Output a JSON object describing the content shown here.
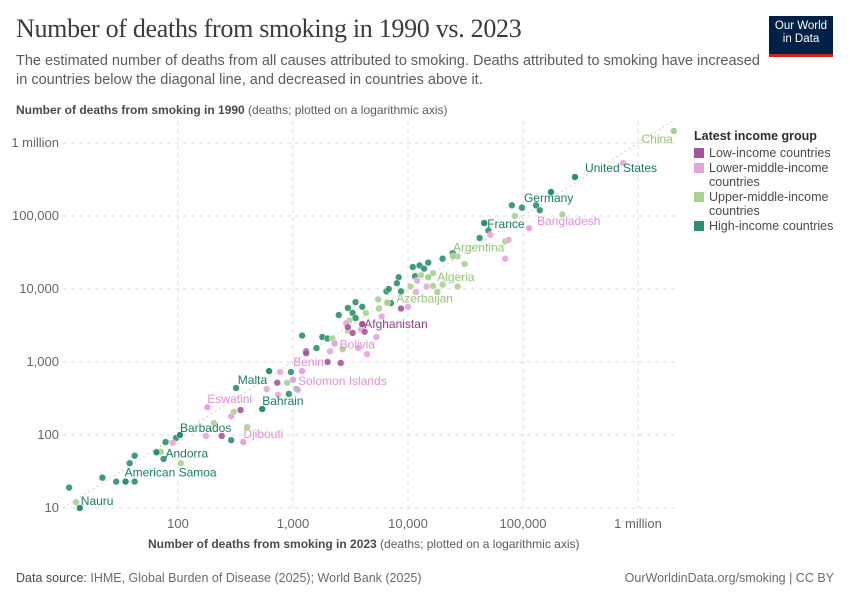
{
  "header": {
    "title": "Number of deaths from smoking in 1990 vs. 2023",
    "subtitle": "The estimated number of deaths from all causes attributed to smoking. Deaths attributed to smoking have increased in countries below the diagonal line, and decreased in countries above it.",
    "logo_line1": "Our World",
    "logo_line2": "in Data"
  },
  "footer": {
    "source_label": "Data source:",
    "source_text": " IHME, Global Burden of Disease (2025); World Bank (2025)",
    "right": "OurWorldinData.org/smoking | CC BY"
  },
  "colors": {
    "low": "#a2559c",
    "lower_middle": "#e3a5de",
    "upper_middle": "#a8d08f",
    "high": "#2d9068",
    "label_low": "#8f3d8c",
    "label_lower_middle": "#de92d6",
    "label_upper_middle": "#95c577",
    "label_high": "#17805a"
  },
  "chart_data": {
    "type": "scatter",
    "xlabel_bold": "Number of deaths from smoking in 2023",
    "xlabel_rest": " (deaths; plotted on a logarithmic axis)",
    "ylabel_bold": "Number of deaths from smoking in 1990",
    "ylabel_rest": " (deaths; plotted on a logarithmic axis)",
    "x_scale": "log",
    "y_scale": "log",
    "xlim": [
      10,
      2200000
    ],
    "ylim": [
      10,
      2000000
    ],
    "x_ticks": [
      {
        "v": 100,
        "label": "100"
      },
      {
        "v": 1000,
        "label": "1,000"
      },
      {
        "v": 10000,
        "label": "10,000"
      },
      {
        "v": 100000,
        "label": "100,000"
      },
      {
        "v": 1000000,
        "label": "1 million"
      }
    ],
    "y_ticks": [
      {
        "v": 10,
        "label": "10"
      },
      {
        "v": 100,
        "label": "100"
      },
      {
        "v": 1000,
        "label": "1,000"
      },
      {
        "v": 10000,
        "label": "10,000"
      },
      {
        "v": 100000,
        "label": "100,000"
      },
      {
        "v": 1000000,
        "label": "1 million"
      }
    ],
    "grid": true,
    "reference_line": "y = x",
    "legend": {
      "title": "Latest income group",
      "placement": "right",
      "entries": [
        {
          "key": "low",
          "label": "Low-income countries"
        },
        {
          "key": "lower_middle",
          "label": "Lower-middle-income countries"
        },
        {
          "key": "upper_middle",
          "label": "Upper-middle-income countries"
        },
        {
          "key": "high",
          "label": "High-income countries"
        }
      ]
    },
    "labeled_points": [
      {
        "name": "China",
        "x": 2050000,
        "y": 1460000,
        "group": "upper_middle"
      },
      {
        "name": "United States",
        "x": 283000,
        "y": 342000,
        "group": "high"
      },
      {
        "name": "Germany",
        "x": 175000,
        "y": 213000,
        "group": "high"
      },
      {
        "name": "France",
        "x": 46000,
        "y": 80000,
        "group": "high"
      },
      {
        "name": "Bangladesh",
        "x": 113000,
        "y": 68000,
        "group": "lower_middle"
      },
      {
        "name": "Argentina",
        "x": 24600,
        "y": 28000,
        "group": "upper_middle"
      },
      {
        "name": "Algeria",
        "x": 15000,
        "y": 14500,
        "group": "upper_middle"
      },
      {
        "name": "Azerbaijan",
        "x": 6600,
        "y": 6500,
        "group": "upper_middle"
      },
      {
        "name": "Afghanistan",
        "x": 4000,
        "y": 3300,
        "group": "low"
      },
      {
        "name": "Bolivia",
        "x": 2300,
        "y": 1800,
        "group": "lower_middle"
      },
      {
        "name": "Benin",
        "x": 1200,
        "y": 750,
        "group": "lower_middle"
      },
      {
        "name": "Solomon Islands",
        "x": 1000,
        "y": 570,
        "group": "lower_middle"
      },
      {
        "name": "Malta",
        "x": 620,
        "y": 750,
        "group": "high"
      },
      {
        "name": "Bahrain",
        "x": 540,
        "y": 227,
        "group": "high"
      },
      {
        "name": "Eswatini",
        "x": 180,
        "y": 240,
        "group": "lower_middle"
      },
      {
        "name": "Barbados",
        "x": 104,
        "y": 100,
        "group": "high"
      },
      {
        "name": "Djibouti",
        "x": 370,
        "y": 80,
        "group": "lower_middle"
      },
      {
        "name": "Andorra",
        "x": 65,
        "y": 58,
        "group": "high"
      },
      {
        "name": "American Samoa",
        "x": 35,
        "y": 23,
        "group": "high"
      },
      {
        "name": "Nauru",
        "x": 14,
        "y": 10,
        "group": "high"
      }
    ],
    "points": [
      {
        "x": 740000,
        "y": 530000,
        "group": "lower_middle"
      },
      {
        "x": 24500,
        "y": 31000,
        "group": "high"
      },
      {
        "x": 20000,
        "y": 26000,
        "group": "high"
      },
      {
        "x": 15000,
        "y": 23000,
        "group": "high"
      },
      {
        "x": 12600,
        "y": 21000,
        "group": "high"
      },
      {
        "x": 11000,
        "y": 20000,
        "group": "high"
      },
      {
        "x": 13800,
        "y": 19000,
        "group": "high"
      },
      {
        "x": 11500,
        "y": 15000,
        "group": "high"
      },
      {
        "x": 8300,
        "y": 14500,
        "group": "high"
      },
      {
        "x": 8000,
        "y": 12000,
        "group": "high"
      },
      {
        "x": 6500,
        "y": 9300,
        "group": "high"
      },
      {
        "x": 6800,
        "y": 10000,
        "group": "high"
      },
      {
        "x": 8700,
        "y": 9300,
        "group": "high"
      },
      {
        "x": 7100,
        "y": 6400,
        "group": "high"
      },
      {
        "x": 3500,
        "y": 6600,
        "group": "high"
      },
      {
        "x": 3000,
        "y": 5500,
        "group": "high"
      },
      {
        "x": 4000,
        "y": 5700,
        "group": "high"
      },
      {
        "x": 2500,
        "y": 4400,
        "group": "high"
      },
      {
        "x": 3300,
        "y": 4700,
        "group": "high"
      },
      {
        "x": 3500,
        "y": 4000,
        "group": "high"
      },
      {
        "x": 1800,
        "y": 2200,
        "group": "high"
      },
      {
        "x": 2000,
        "y": 2100,
        "group": "high"
      },
      {
        "x": 1200,
        "y": 2300,
        "group": "high"
      },
      {
        "x": 1600,
        "y": 1550,
        "group": "high"
      },
      {
        "x": 130000,
        "y": 140000,
        "group": "high"
      },
      {
        "x": 98000,
        "y": 130000,
        "group": "high"
      },
      {
        "x": 80000,
        "y": 140000,
        "group": "high"
      },
      {
        "x": 140000,
        "y": 120000,
        "group": "high"
      },
      {
        "x": 50000,
        "y": 63000,
        "group": "high"
      },
      {
        "x": 42000,
        "y": 50000,
        "group": "high"
      },
      {
        "x": 320,
        "y": 440,
        "group": "high"
      },
      {
        "x": 960,
        "y": 730,
        "group": "high"
      },
      {
        "x": 1080,
        "y": 425,
        "group": "high"
      },
      {
        "x": 920,
        "y": 365,
        "group": "high"
      },
      {
        "x": 290,
        "y": 85,
        "group": "high"
      },
      {
        "x": 96,
        "y": 91,
        "group": "high"
      },
      {
        "x": 78,
        "y": 80,
        "group": "high"
      },
      {
        "x": 75,
        "y": 47,
        "group": "high"
      },
      {
        "x": 42,
        "y": 52,
        "group": "high"
      },
      {
        "x": 38,
        "y": 41,
        "group": "high"
      },
      {
        "x": 42,
        "y": 23,
        "group": "high"
      },
      {
        "x": 29,
        "y": 23,
        "group": "high"
      },
      {
        "x": 22,
        "y": 26,
        "group": "high"
      },
      {
        "x": 11.3,
        "y": 19,
        "group": "high"
      },
      {
        "x": 27000,
        "y": 28000,
        "group": "upper_middle"
      },
      {
        "x": 31000,
        "y": 22000,
        "group": "upper_middle"
      },
      {
        "x": 16500,
        "y": 16500,
        "group": "upper_middle"
      },
      {
        "x": 13000,
        "y": 15500,
        "group": "upper_middle"
      },
      {
        "x": 10500,
        "y": 10800,
        "group": "upper_middle"
      },
      {
        "x": 16500,
        "y": 11000,
        "group": "upper_middle"
      },
      {
        "x": 20000,
        "y": 11500,
        "group": "upper_middle"
      },
      {
        "x": 18000,
        "y": 9100,
        "group": "upper_middle"
      },
      {
        "x": 27000,
        "y": 10800,
        "group": "upper_middle"
      },
      {
        "x": 5600,
        "y": 5400,
        "group": "upper_middle"
      },
      {
        "x": 5500,
        "y": 7200,
        "group": "upper_middle"
      },
      {
        "x": 4300,
        "y": 4700,
        "group": "upper_middle"
      },
      {
        "x": 3100,
        "y": 3700,
        "group": "upper_middle"
      },
      {
        "x": 3000,
        "y": 2700,
        "group": "upper_middle"
      },
      {
        "x": 2200,
        "y": 2100,
        "group": "upper_middle"
      },
      {
        "x": 2700,
        "y": 1500,
        "group": "upper_middle"
      },
      {
        "x": 106,
        "y": 41,
        "group": "upper_middle"
      },
      {
        "x": 305,
        "y": 207,
        "group": "upper_middle"
      },
      {
        "x": 890,
        "y": 520,
        "group": "upper_middle"
      },
      {
        "x": 400,
        "y": 128,
        "group": "upper_middle"
      },
      {
        "x": 205,
        "y": 146,
        "group": "upper_middle"
      },
      {
        "x": 13,
        "y": 12,
        "group": "upper_middle"
      },
      {
        "x": 71,
        "y": 59,
        "group": "upper_middle"
      },
      {
        "x": 85000,
        "y": 100000,
        "group": "upper_middle"
      },
      {
        "x": 70000,
        "y": 45000,
        "group": "upper_middle"
      },
      {
        "x": 220000,
        "y": 105000,
        "group": "upper_middle"
      },
      {
        "x": 12000,
        "y": 13000,
        "group": "lower_middle"
      },
      {
        "x": 14500,
        "y": 10800,
        "group": "lower_middle"
      },
      {
        "x": 11700,
        "y": 9100,
        "group": "lower_middle"
      },
      {
        "x": 10000,
        "y": 5700,
        "group": "lower_middle"
      },
      {
        "x": 5900,
        "y": 4200,
        "group": "lower_middle"
      },
      {
        "x": 5300,
        "y": 2200,
        "group": "lower_middle"
      },
      {
        "x": 4400,
        "y": 1280,
        "group": "lower_middle"
      },
      {
        "x": 3700,
        "y": 1550,
        "group": "lower_middle"
      },
      {
        "x": 3900,
        "y": 2800,
        "group": "lower_middle"
      },
      {
        "x": 2900,
        "y": 3400,
        "group": "lower_middle"
      },
      {
        "x": 2100,
        "y": 1400,
        "group": "lower_middle"
      },
      {
        "x": 590,
        "y": 425,
        "group": "lower_middle"
      },
      {
        "x": 770,
        "y": 730,
        "group": "lower_middle"
      },
      {
        "x": 1100,
        "y": 415,
        "group": "lower_middle"
      },
      {
        "x": 290,
        "y": 180,
        "group": "lower_middle"
      },
      {
        "x": 175,
        "y": 97,
        "group": "lower_middle"
      },
      {
        "x": 740,
        "y": 355,
        "group": "lower_middle"
      },
      {
        "x": 90,
        "y": 78,
        "group": "lower_middle"
      },
      {
        "x": 70000,
        "y": 26000,
        "group": "lower_middle"
      },
      {
        "x": 75000,
        "y": 47000,
        "group": "lower_middle"
      },
      {
        "x": 52000,
        "y": 55000,
        "group": "lower_middle"
      },
      {
        "x": 8700,
        "y": 5400,
        "group": "low"
      },
      {
        "x": 4200,
        "y": 2600,
        "group": "low"
      },
      {
        "x": 3300,
        "y": 2500,
        "group": "low"
      },
      {
        "x": 2000,
        "y": 1000,
        "group": "low"
      },
      {
        "x": 2600,
        "y": 970,
        "group": "low"
      },
      {
        "x": 1300,
        "y": 1400,
        "group": "low"
      },
      {
        "x": 350,
        "y": 220,
        "group": "low"
      },
      {
        "x": 240,
        "y": 97,
        "group": "low"
      },
      {
        "x": 730,
        "y": 520,
        "group": "low"
      },
      {
        "x": 1300,
        "y": 1320,
        "group": "low"
      },
      {
        "x": 1200,
        "y": 750,
        "group": "low"
      },
      {
        "x": 3000,
        "y": 3000,
        "group": "low"
      }
    ]
  }
}
